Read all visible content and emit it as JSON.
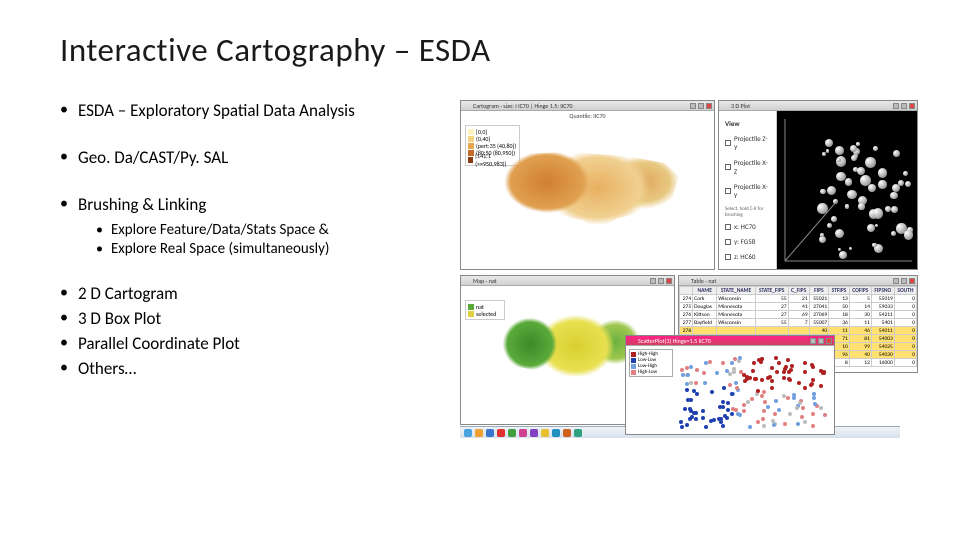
{
  "title": "Interactive Cartography – ESDA",
  "bullets": {
    "b1": "ESDA – Exploratory Spatial Data Analysis",
    "b2": "Geo. Da/CAST/Py. SAL",
    "b3": "Brushing & Linking",
    "b3a": "Explore Feature/Data/Stats Space &",
    "b3b": "Explore Real Space (simultaneously)",
    "b4": "2 D Cartogram",
    "b5": "3 D Box Plot",
    "b6": "Parallel Coordinate Plot",
    "b7": "Others…"
  },
  "shots": {
    "choropleth": {
      "title": "Cartogram - size: I IC70 | Hinge 1.5: IIC70",
      "subtitle": "Quantile: IIC70",
      "legend": [
        {
          "c": "#fdf2c0",
          "l": "[0,0]"
        },
        {
          "c": "#f5d47e",
          "l": "(0,40]"
        },
        {
          "c": "#e8a54d",
          "l": "(pert:35 (40,80])"
        },
        {
          "c": "#c46a28",
          "l": "(80:50 (80,950])"
        },
        {
          "c": "#8a3a10",
          "l": "[141:1 (>=950,983)]"
        }
      ]
    },
    "panel": {
      "title": "3 D Plot",
      "items": [
        "View",
        "Projectile Z-Y",
        "Projectile X-Z",
        "Projectile X-Y"
      ],
      "note": "Select, hold C-K for brushing",
      "axis": [
        "x: HC70",
        "y: FG58",
        "z: HC60"
      ]
    },
    "map2": {
      "title": "Map - nat",
      "legend": [
        "nat",
        "selected"
      ]
    },
    "scatter_overlay": {
      "title": "ScatterPlot(3) Hinge=1.5 IIC70",
      "legend": [
        {
          "c": "#b02020",
          "l": "High-High"
        },
        {
          "c": "#2040b0",
          "l": "Low-Low"
        },
        {
          "c": "#70a0e0",
          "l": "Low-High"
        },
        {
          "c": "#e08080",
          "l": "High-Low"
        }
      ]
    },
    "table": {
      "title": "Table - nat",
      "cols": [
        "",
        "NAME",
        "STATE_NAME",
        "STATE_FIPS",
        "C_FIPS",
        "FIPS",
        "STFIPS",
        "COFIPS",
        "FIPSNO",
        "SOUTH"
      ],
      "rows": [
        [
          "274",
          "Cork",
          "Wisconsin",
          "55",
          "21",
          "55021",
          "13",
          "5",
          "55019",
          "0"
        ],
        [
          "275",
          "Douglas",
          "Minnesota",
          "27",
          "41",
          "27041",
          "50",
          "14",
          "59033",
          "0"
        ],
        [
          "276",
          "Kittson",
          "Minnesota",
          "27",
          "69",
          "27069",
          "18",
          "30",
          "54211",
          "0"
        ],
        [
          "277",
          "Bayfield",
          "Wisconsin",
          "55",
          "7",
          "55007",
          "36",
          "11",
          "5401",
          "0"
        ],
        [
          "278",
          "",
          "",
          "",
          "",
          "40",
          "11",
          "46",
          "54011",
          "0"
        ],
        [
          "279",
          "",
          "",
          "",
          "",
          "53",
          "71",
          "81",
          "54003",
          "0"
        ],
        [
          "280",
          "",
          "",
          "",
          "",
          "91",
          "10",
          "99",
          "54025",
          "0"
        ],
        [
          "281",
          "",
          "",
          "",
          "",
          "39",
          "96",
          "40",
          "54030",
          "0"
        ],
        [
          "282",
          "",
          "",
          "",
          "",
          "44",
          "8",
          "12",
          "16000",
          "0"
        ]
      ],
      "sel": [
        4,
        5,
        6,
        7
      ]
    },
    "taskbar_colors": [
      "#4aa3df",
      "#f0a030",
      "#3a76d0",
      "#e03030",
      "#40a040",
      "#d04090",
      "#8040c0",
      "#e8c030",
      "#2090c0",
      "#d06020",
      "#30a080"
    ]
  }
}
